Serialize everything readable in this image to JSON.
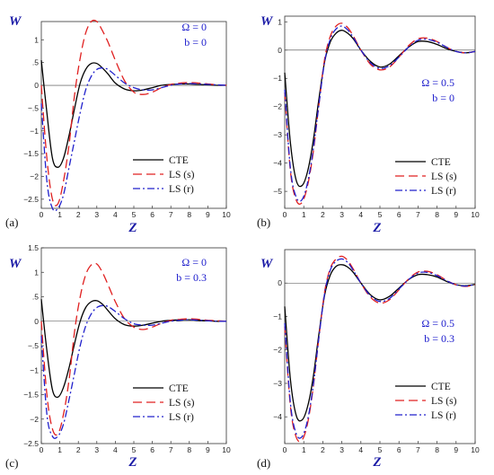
{
  "chart_data": [
    {
      "type": "line",
      "panel_label": "(a)",
      "xlabel": "Z",
      "ylabel": "W",
      "xlim": [
        0,
        10
      ],
      "ylim": [
        -2.7,
        1.4
      ],
      "xticks": [
        0,
        1,
        2,
        3,
        4,
        5,
        6,
        7,
        8,
        9,
        10
      ],
      "yticks": [
        1,
        0.5,
        0,
        -0.5,
        -1,
        -1.5,
        -2,
        -2.5
      ],
      "params": [
        "Ω = 0",
        "b = 0"
      ],
      "legend": "bottom-right",
      "series": [
        {
          "name": "CTE",
          "color": "#000000",
          "dash": "solid",
          "x": [
            0,
            0.3,
            0.6,
            0.9,
            1.2,
            1.5,
            1.8,
            2.1,
            2.4,
            2.7,
            3.0,
            3.3,
            3.6,
            4.0,
            4.5,
            5.0,
            5.5,
            6.0,
            6.5,
            7.0,
            7.5,
            8.0,
            8.5,
            9.0,
            9.5,
            10
          ],
          "y": [
            0.55,
            -0.6,
            -1.6,
            -1.8,
            -1.6,
            -1.1,
            -0.5,
            0.05,
            0.35,
            0.48,
            0.48,
            0.38,
            0.25,
            0.05,
            -0.08,
            -0.12,
            -0.1,
            -0.05,
            0.0,
            0.02,
            0.03,
            0.03,
            0.02,
            0.01,
            0.0,
            0.0
          ]
        },
        {
          "name": "LS (s)",
          "color": "#e02020",
          "dash": "10,5",
          "x": [
            0,
            0.3,
            0.6,
            0.9,
            1.2,
            1.5,
            1.8,
            2.1,
            2.4,
            2.7,
            3.0,
            3.3,
            3.6,
            4.0,
            4.5,
            5.0,
            5.5,
            6.0,
            6.5,
            7.0,
            7.5,
            8.0,
            8.5,
            9.0,
            9.5,
            10
          ],
          "y": [
            0.0,
            -1.6,
            -2.5,
            -2.6,
            -2.1,
            -1.3,
            -0.2,
            0.6,
            1.15,
            1.4,
            1.4,
            1.2,
            0.95,
            0.55,
            0.1,
            -0.15,
            -0.2,
            -0.15,
            -0.05,
            0.02,
            0.05,
            0.06,
            0.05,
            0.03,
            0.01,
            0.0
          ]
        },
        {
          "name": "LS (r)",
          "color": "#2020cc",
          "dash": "8,3,2,3",
          "x": [
            0,
            0.3,
            0.6,
            0.9,
            1.2,
            1.5,
            1.8,
            2.1,
            2.4,
            2.7,
            3.0,
            3.3,
            3.6,
            4.0,
            4.5,
            5.0,
            5.5,
            6.0,
            6.5,
            7.0,
            7.5,
            8.0,
            8.5,
            9.0,
            9.5,
            10
          ],
          "y": [
            -0.4,
            -2.1,
            -2.7,
            -2.7,
            -2.4,
            -1.8,
            -1.2,
            -0.6,
            -0.1,
            0.2,
            0.35,
            0.38,
            0.35,
            0.22,
            0.05,
            -0.05,
            -0.1,
            -0.1,
            -0.05,
            0.0,
            0.03,
            0.04,
            0.03,
            0.02,
            0.01,
            0.0
          ]
        }
      ]
    },
    {
      "type": "line",
      "panel_label": "(b)",
      "xlabel": "Z",
      "ylabel": "W",
      "xlim": [
        0,
        10
      ],
      "ylim": [
        -5.6,
        1.2
      ],
      "xticks": [
        0,
        1,
        2,
        3,
        4,
        5,
        6,
        7,
        8,
        9,
        10
      ],
      "yticks": [
        1,
        0,
        -1,
        -2,
        -3,
        -4,
        -5
      ],
      "params": [
        "Ω = 0.5",
        "b = 0"
      ],
      "legend": "bottom-right",
      "series": [
        {
          "name": "CTE",
          "color": "#000000",
          "dash": "solid",
          "x": [
            0,
            0.3,
            0.6,
            0.9,
            1.2,
            1.5,
            1.8,
            2.1,
            2.4,
            2.7,
            3.0,
            3.3,
            3.6,
            4.0,
            4.5,
            5.0,
            5.5,
            6.0,
            6.5,
            7.0,
            7.5,
            8.0,
            8.5,
            9.0,
            9.5,
            10
          ],
          "y": [
            -0.8,
            -3.3,
            -4.6,
            -4.8,
            -4.3,
            -3.2,
            -1.7,
            -0.4,
            0.3,
            0.6,
            0.7,
            0.6,
            0.4,
            0.0,
            -0.4,
            -0.6,
            -0.5,
            -0.2,
            0.1,
            0.3,
            0.3,
            0.2,
            0.05,
            -0.05,
            -0.1,
            -0.05
          ]
        },
        {
          "name": "LS (s)",
          "color": "#e02020",
          "dash": "10,5",
          "x": [
            0,
            0.3,
            0.6,
            0.9,
            1.2,
            1.5,
            1.8,
            2.1,
            2.4,
            2.7,
            3.0,
            3.3,
            3.6,
            4.0,
            4.5,
            5.0,
            5.5,
            6.0,
            6.5,
            7.0,
            7.5,
            8.0,
            8.5,
            9.0,
            9.5,
            10
          ],
          "y": [
            -1.5,
            -4.3,
            -5.3,
            -5.4,
            -4.8,
            -3.6,
            -1.9,
            -0.3,
            0.5,
            0.85,
            0.95,
            0.8,
            0.5,
            0.0,
            -0.5,
            -0.7,
            -0.6,
            -0.25,
            0.15,
            0.4,
            0.42,
            0.3,
            0.1,
            -0.05,
            -0.1,
            -0.05
          ]
        },
        {
          "name": "LS (r)",
          "color": "#2020cc",
          "dash": "8,3,2,3",
          "x": [
            0,
            0.3,
            0.6,
            0.9,
            1.2,
            1.5,
            1.8,
            2.1,
            2.4,
            2.7,
            3.0,
            3.3,
            3.6,
            4.0,
            4.5,
            5.0,
            5.5,
            6.0,
            6.5,
            7.0,
            7.5,
            8.0,
            8.5,
            9.0,
            9.5,
            10
          ],
          "y": [
            -1.4,
            -4.2,
            -5.2,
            -5.3,
            -4.7,
            -3.5,
            -1.9,
            -0.4,
            0.4,
            0.75,
            0.85,
            0.72,
            0.45,
            0.0,
            -0.45,
            -0.65,
            -0.55,
            -0.25,
            0.1,
            0.35,
            0.38,
            0.28,
            0.1,
            -0.05,
            -0.1,
            -0.05
          ]
        }
      ]
    },
    {
      "type": "line",
      "panel_label": "(c)",
      "xlabel": "Z",
      "ylabel": "W",
      "xlim": [
        0,
        10
      ],
      "ylim": [
        -2.5,
        1.5
      ],
      "xticks": [
        0,
        1,
        2,
        3,
        4,
        5,
        6,
        7,
        8,
        9,
        10
      ],
      "yticks": [
        1.5,
        1,
        0.5,
        0,
        -0.5,
        -1,
        -1.5,
        -2,
        -2.5
      ],
      "params": [
        "Ω = 0",
        "b = 0.3"
      ],
      "legend": "bottom-right",
      "series": [
        {
          "name": "CTE",
          "color": "#000000",
          "dash": "solid",
          "x": [
            0,
            0.3,
            0.6,
            0.9,
            1.2,
            1.5,
            1.8,
            2.1,
            2.4,
            2.7,
            3.0,
            3.3,
            3.6,
            4.0,
            4.5,
            5.0,
            5.5,
            6.0,
            6.5,
            7.0,
            7.5,
            8.0,
            8.5,
            9.0,
            9.5,
            10
          ],
          "y": [
            0.45,
            -0.6,
            -1.4,
            -1.55,
            -1.35,
            -0.95,
            -0.45,
            0.0,
            0.28,
            0.4,
            0.42,
            0.35,
            0.22,
            0.05,
            -0.07,
            -0.1,
            -0.08,
            -0.04,
            0.0,
            0.02,
            0.03,
            0.03,
            0.02,
            0.01,
            0.0,
            0.0
          ]
        },
        {
          "name": "LS (s)",
          "color": "#e02020",
          "dash": "10,5",
          "x": [
            0,
            0.3,
            0.6,
            0.9,
            1.2,
            1.5,
            1.8,
            2.1,
            2.4,
            2.7,
            3.0,
            3.3,
            3.6,
            4.0,
            4.5,
            5.0,
            5.5,
            6.0,
            6.5,
            7.0,
            7.5,
            8.0,
            8.5,
            9.0,
            9.5,
            10
          ],
          "y": [
            0.0,
            -1.5,
            -2.2,
            -2.3,
            -1.9,
            -1.2,
            -0.2,
            0.5,
            0.95,
            1.15,
            1.17,
            1.0,
            0.75,
            0.4,
            0.05,
            -0.12,
            -0.17,
            -0.12,
            -0.04,
            0.02,
            0.04,
            0.05,
            0.04,
            0.02,
            0.01,
            0.0
          ]
        },
        {
          "name": "LS (r)",
          "color": "#2020cc",
          "dash": "8,3,2,3",
          "x": [
            0,
            0.3,
            0.6,
            0.9,
            1.2,
            1.5,
            1.8,
            2.1,
            2.4,
            2.7,
            3.0,
            3.3,
            3.6,
            4.0,
            4.5,
            5.0,
            5.5,
            6.0,
            6.5,
            7.0,
            7.5,
            8.0,
            8.5,
            9.0,
            9.5,
            10
          ],
          "y": [
            -0.3,
            -1.9,
            -2.35,
            -2.35,
            -2.1,
            -1.6,
            -1.05,
            -0.5,
            -0.1,
            0.15,
            0.28,
            0.32,
            0.3,
            0.2,
            0.05,
            -0.05,
            -0.08,
            -0.08,
            -0.04,
            0.0,
            0.02,
            0.03,
            0.02,
            0.01,
            0.0,
            0.0
          ]
        }
      ]
    },
    {
      "type": "line",
      "panel_label": "(d)",
      "xlabel": "Z",
      "ylabel": "W",
      "xlim": [
        0,
        10
      ],
      "ylim": [
        -4.8,
        1.0
      ],
      "xticks": [
        0,
        1,
        2,
        3,
        4,
        5,
        6,
        7,
        8,
        9,
        10
      ],
      "yticks": [
        0,
        -1,
        -2,
        -3,
        -4
      ],
      "params": [
        "Ω = 0.5",
        "b = 0.3"
      ],
      "legend": "bottom-right",
      "series": [
        {
          "name": "CTE",
          "color": "#000000",
          "dash": "solid",
          "x": [
            0,
            0.3,
            0.6,
            0.9,
            1.2,
            1.5,
            1.8,
            2.1,
            2.4,
            2.7,
            3.0,
            3.3,
            3.6,
            4.0,
            4.5,
            5.0,
            5.5,
            6.0,
            6.5,
            7.0,
            7.5,
            8.0,
            8.5,
            9.0,
            9.5,
            10
          ],
          "y": [
            -0.7,
            -2.9,
            -3.95,
            -4.1,
            -3.7,
            -2.8,
            -1.5,
            -0.35,
            0.25,
            0.5,
            0.55,
            0.48,
            0.32,
            0.0,
            -0.35,
            -0.5,
            -0.4,
            -0.15,
            0.1,
            0.25,
            0.25,
            0.18,
            0.05,
            -0.05,
            -0.08,
            -0.04
          ]
        },
        {
          "name": "LS (s)",
          "color": "#e02020",
          "dash": "10,5",
          "x": [
            0,
            0.3,
            0.6,
            0.9,
            1.2,
            1.5,
            1.8,
            2.1,
            2.4,
            2.7,
            3.0,
            3.3,
            3.6,
            4.0,
            4.5,
            5.0,
            5.5,
            6.0,
            6.5,
            7.0,
            7.5,
            8.0,
            8.5,
            9.0,
            9.5,
            10
          ],
          "y": [
            -1.3,
            -3.7,
            -4.6,
            -4.7,
            -4.2,
            -3.1,
            -1.6,
            -0.25,
            0.45,
            0.72,
            0.8,
            0.68,
            0.42,
            0.0,
            -0.42,
            -0.6,
            -0.5,
            -0.2,
            0.12,
            0.33,
            0.35,
            0.25,
            0.08,
            -0.05,
            -0.1,
            -0.05
          ]
        },
        {
          "name": "LS (r)",
          "color": "#2020cc",
          "dash": "8,3,2,3",
          "x": [
            0,
            0.3,
            0.6,
            0.9,
            1.2,
            1.5,
            1.8,
            2.1,
            2.4,
            2.7,
            3.0,
            3.3,
            3.6,
            4.0,
            4.5,
            5.0,
            5.5,
            6.0,
            6.5,
            7.0,
            7.5,
            8.0,
            8.5,
            9.0,
            9.5,
            10
          ],
          "y": [
            -1.2,
            -3.6,
            -4.5,
            -4.6,
            -4.1,
            -3.05,
            -1.6,
            -0.3,
            0.4,
            0.65,
            0.72,
            0.62,
            0.38,
            0.0,
            -0.38,
            -0.55,
            -0.46,
            -0.18,
            0.1,
            0.3,
            0.32,
            0.22,
            0.07,
            -0.05,
            -0.09,
            -0.04
          ]
        }
      ]
    }
  ]
}
